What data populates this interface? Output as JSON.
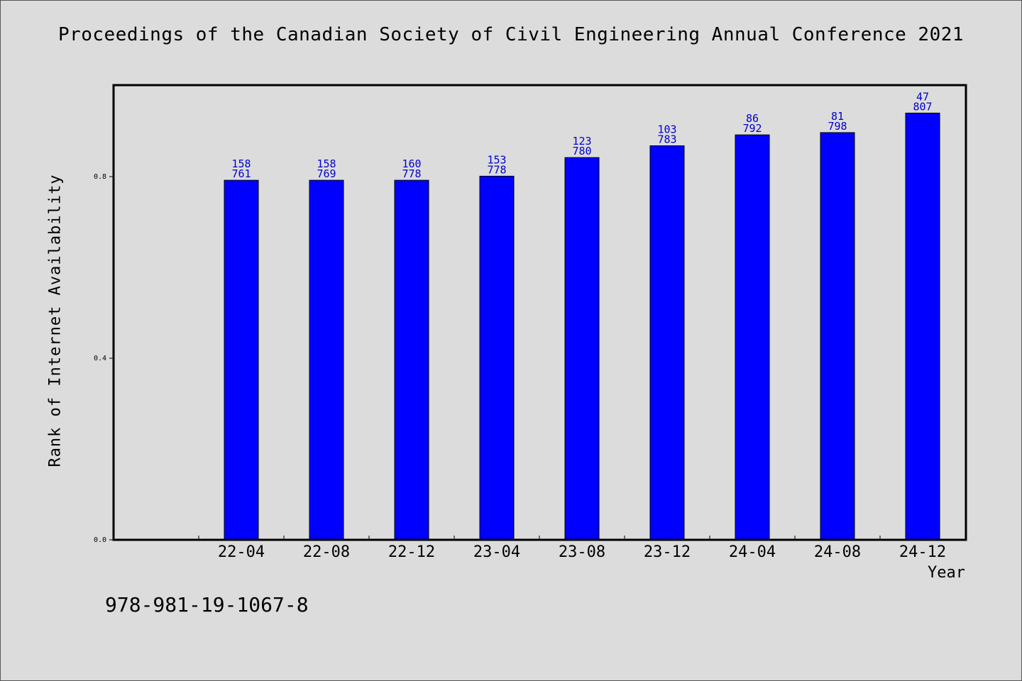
{
  "chart_data": {
    "type": "bar",
    "title": "Proceedings of the Canadian Society of Civil Engineering Annual Conference 2021",
    "xlabel": "Year",
    "ylabel": "Rank of Internet Availability",
    "categories": [
      "22-04",
      "22-08",
      "22-12",
      "23-04",
      "23-08",
      "23-12",
      "24-04",
      "24-08",
      "24-12"
    ],
    "values": [
      0.792,
      0.792,
      0.792,
      0.801,
      0.842,
      0.868,
      0.892,
      0.897,
      0.94
    ],
    "label_top": [
      "158",
      "158",
      "160",
      "153",
      "123",
      "103",
      "86",
      "81",
      "47"
    ],
    "label_bottom": [
      "761",
      "769",
      "778",
      "778",
      "780",
      "783",
      "792",
      "798",
      "807"
    ],
    "yticks": [
      "0.0",
      "0.4",
      "0.8"
    ],
    "ytick_values": [
      0.0,
      0.4,
      0.8
    ],
    "ylim": [
      0.0,
      1.0
    ],
    "grid": false,
    "bar_color": "#0000ff",
    "label_color": "#0000cc"
  },
  "footer": {
    "isbn": "978-981-19-1067-8"
  }
}
